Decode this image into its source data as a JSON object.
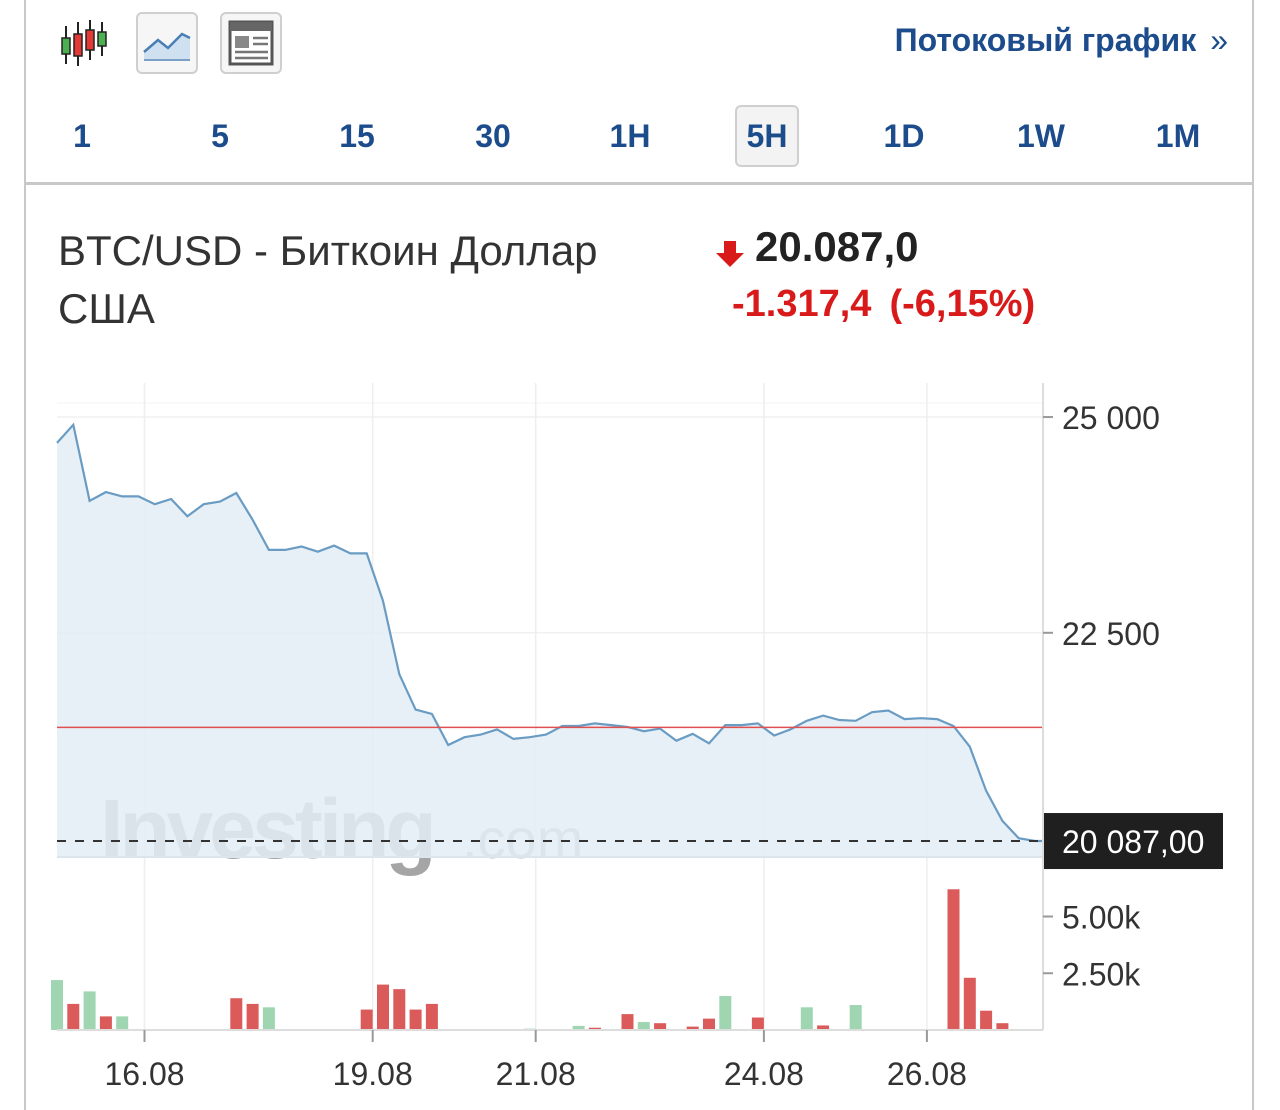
{
  "toolbar": {
    "icons": [
      "candlestick-icon",
      "line-chart-icon",
      "layout-icon"
    ],
    "stream_link": "Потоковый график",
    "stream_chevron": "»",
    "periods": [
      "1",
      "5",
      "15",
      "30",
      "1H",
      "5H",
      "1D",
      "1W",
      "1M"
    ],
    "active_period": "5H"
  },
  "instrument": {
    "title_line1": "BTC/USD - Биткоин Доллар",
    "title_line2": "США",
    "price": "20.087,0",
    "change": "-1.317,4",
    "change_pct": "(-6,15%)",
    "direction": "down"
  },
  "watermark": {
    "brand": "Investing",
    "suffix": ".com"
  },
  "colors": {
    "link": "#1d4c8c",
    "down": "#d91a1a",
    "line": "#6a9cc3",
    "area": "#e3edf5",
    "vol_up": "#9fd5b0",
    "vol_down": "#db5b5b",
    "prev_close": "#e05050"
  },
  "chart_data": {
    "type": "line",
    "price_axis": {
      "ticks": [
        25000,
        22500
      ],
      "tick_labels": [
        "25 000",
        "22 500"
      ],
      "range": [
        19950,
        25150
      ]
    },
    "current_price": 20087.0,
    "current_price_label": "20 087,00",
    "reference_line": 21404.4,
    "x_tick_labels": [
      "16.08",
      "19.08",
      "21.08",
      "24.08",
      "26.08"
    ],
    "x_tick_index": [
      5,
      19,
      29,
      43,
      53
    ],
    "series": [
      {
        "values": [
          24700,
          24910,
          24030,
          24130,
          24080,
          24080,
          23990,
          24050,
          23850,
          23990,
          24020,
          24120,
          23810,
          23460,
          23460,
          23500,
          23440,
          23510,
          23420,
          23420,
          22870,
          22020,
          21610,
          21560,
          21200,
          21290,
          21320,
          21380,
          21270,
          21290,
          21320,
          21420,
          21420,
          21450,
          21430,
          21410,
          21360,
          21390,
          21250,
          21330,
          21220,
          21430,
          21430,
          21450,
          21310,
          21380,
          21480,
          21540,
          21490,
          21480,
          21580,
          21600,
          21500,
          21510,
          21500,
          21420,
          21180,
          20670,
          20320,
          20120,
          20087
        ]
      }
    ],
    "volume_axis": {
      "ticks": [
        5000,
        2500
      ],
      "tick_labels": [
        "5.00k",
        "2.50k"
      ],
      "max": 6300
    },
    "volume": [
      {
        "i": 0,
        "v": 2200,
        "dir": "up"
      },
      {
        "i": 1,
        "v": 1150,
        "dir": "down"
      },
      {
        "i": 2,
        "v": 1700,
        "dir": "up"
      },
      {
        "i": 3,
        "v": 600,
        "dir": "down"
      },
      {
        "i": 4,
        "v": 600,
        "dir": "up"
      },
      {
        "i": 11,
        "v": 1400,
        "dir": "down"
      },
      {
        "i": 12,
        "v": 1150,
        "dir": "down"
      },
      {
        "i": 13,
        "v": 1000,
        "dir": "up"
      },
      {
        "i": 19,
        "v": 900,
        "dir": "down"
      },
      {
        "i": 20,
        "v": 2000,
        "dir": "down"
      },
      {
        "i": 21,
        "v": 1800,
        "dir": "down"
      },
      {
        "i": 22,
        "v": 900,
        "dir": "down"
      },
      {
        "i": 23,
        "v": 1150,
        "dir": "down"
      },
      {
        "i": 29,
        "v": 60,
        "dir": "up"
      },
      {
        "i": 32,
        "v": 180,
        "dir": "up"
      },
      {
        "i": 33,
        "v": 100,
        "dir": "down"
      },
      {
        "i": 35,
        "v": 700,
        "dir": "down"
      },
      {
        "i": 36,
        "v": 350,
        "dir": "up"
      },
      {
        "i": 37,
        "v": 300,
        "dir": "down"
      },
      {
        "i": 39,
        "v": 150,
        "dir": "down"
      },
      {
        "i": 40,
        "v": 500,
        "dir": "down"
      },
      {
        "i": 41,
        "v": 1500,
        "dir": "up"
      },
      {
        "i": 43,
        "v": 550,
        "dir": "down"
      },
      {
        "i": 46,
        "v": 1000,
        "dir": "up"
      },
      {
        "i": 47,
        "v": 200,
        "dir": "down"
      },
      {
        "i": 49,
        "v": 1100,
        "dir": "up"
      },
      {
        "i": 55,
        "v": 6200,
        "dir": "down"
      },
      {
        "i": 56,
        "v": 2300,
        "dir": "down"
      },
      {
        "i": 57,
        "v": 850,
        "dir": "down"
      },
      {
        "i": 58,
        "v": 300,
        "dir": "down"
      }
    ],
    "grid": true
  }
}
